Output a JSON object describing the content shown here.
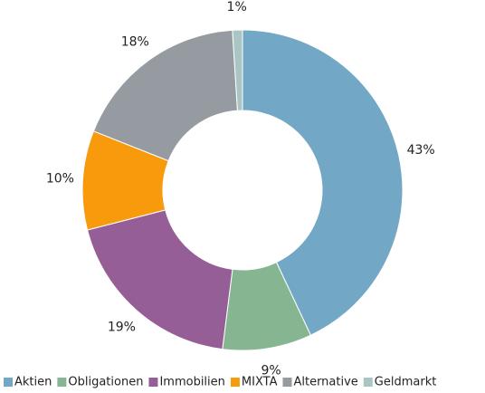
{
  "chart_data": {
    "type": "donut",
    "categories": [
      "Aktien",
      "Obligationen",
      "Immobilien",
      "MIXTA",
      "Alternative",
      "Geldmarkt"
    ],
    "values": [
      43,
      9,
      19,
      10,
      18,
      1
    ],
    "value_labels": [
      "43%",
      "9%",
      "19%",
      "10%",
      "18%",
      "1%"
    ],
    "colors": [
      "#72a8c6",
      "#86b591",
      "#965e96",
      "#f79a0b",
      "#959ba1",
      "#a9c6c4"
    ],
    "legend": "bottom"
  }
}
